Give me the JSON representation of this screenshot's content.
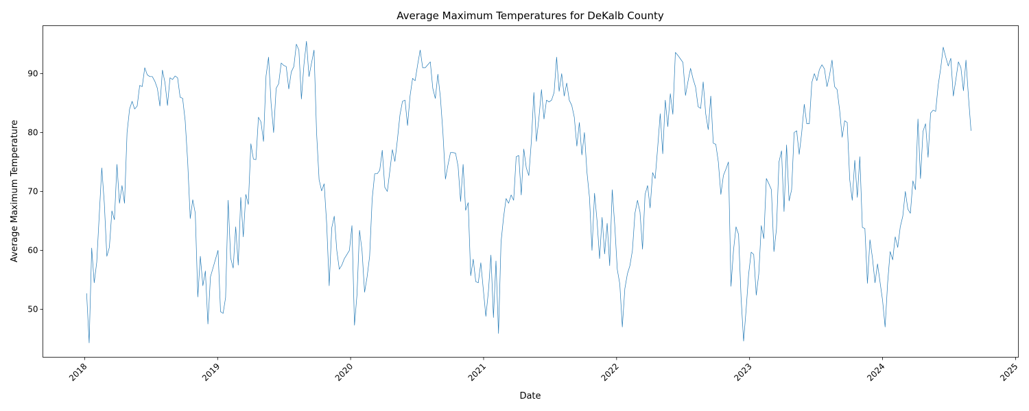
{
  "chart_data": {
    "type": "line",
    "title": "Average Maximum Temperatures for DeKalb County",
    "x_label": "Date",
    "y_label": "Average Maximum Temperature",
    "color": "#1f77b4",
    "xlim": [
      2017.686,
      2025.021
    ],
    "xticks": [
      2018,
      2019,
      2020,
      2021,
      2022,
      2023,
      2024,
      2025
    ],
    "ylim": [
      41.86,
      98.14
    ],
    "yticks": [
      50,
      60,
      70,
      80,
      90
    ],
    "grid": false,
    "x": [
      2018.015,
      2018.034,
      2018.053,
      2018.072,
      2018.091,
      2018.11,
      2018.129,
      2018.148,
      2018.167,
      2018.186,
      2018.205,
      2018.224,
      2018.243,
      2018.262,
      2018.281,
      2018.3,
      2018.319,
      2018.338,
      2018.357,
      2018.376,
      2018.395,
      2018.414,
      2018.433,
      2018.452,
      2018.471,
      2018.49,
      2018.509,
      2018.528,
      2018.547,
      2018.566,
      2018.585,
      2018.604,
      2018.623,
      2018.642,
      2018.661,
      2018.68,
      2018.699,
      2018.718,
      2018.737,
      2018.756,
      2018.775,
      2018.794,
      2018.813,
      2018.832,
      2018.851,
      2018.87,
      2018.889,
      2018.908,
      2018.927,
      2018.946,
      2018.965,
      2018.984,
      2019.003,
      2019.022,
      2019.041,
      2019.06,
      2019.079,
      2019.098,
      2019.117,
      2019.136,
      2019.155,
      2019.174,
      2019.193,
      2019.212,
      2019.231,
      2019.25,
      2019.269,
      2019.288,
      2019.307,
      2019.326,
      2019.345,
      2019.364,
      2019.383,
      2019.402,
      2019.421,
      2019.44,
      2019.459,
      2019.478,
      2019.497,
      2019.516,
      2019.535,
      2019.554,
      2019.573,
      2019.592,
      2019.611,
      2019.63,
      2019.649,
      2019.668,
      2019.687,
      2019.706,
      2019.725,
      2019.744,
      2019.763,
      2019.782,
      2019.801,
      2019.82,
      2019.839,
      2019.858,
      2019.877,
      2019.896,
      2019.915,
      2019.934,
      2019.953,
      2019.972,
      2019.991,
      2020.01,
      2020.029,
      2020.048,
      2020.067,
      2020.086,
      2020.105,
      2020.124,
      2020.143,
      2020.162,
      2020.181,
      2020.2,
      2020.219,
      2020.238,
      2020.257,
      2020.276,
      2020.295,
      2020.314,
      2020.333,
      2020.352,
      2020.371,
      2020.39,
      2020.409,
      2020.428,
      2020.447,
      2020.466,
      2020.485,
      2020.504,
      2020.523,
      2020.542,
      2020.561,
      2020.58,
      2020.599,
      2020.618,
      2020.637,
      2020.656,
      2020.675,
      2020.694,
      2020.713,
      2020.732,
      2020.751,
      2020.77,
      2020.789,
      2020.808,
      2020.827,
      2020.846,
      2020.865,
      2020.884,
      2020.903,
      2020.922,
      2020.941,
      2020.96,
      2020.979,
      2020.998,
      2021.017,
      2021.036,
      2021.055,
      2021.074,
      2021.093,
      2021.112,
      2021.131,
      2021.15,
      2021.169,
      2021.188,
      2021.207,
      2021.226,
      2021.245,
      2021.264,
      2021.283,
      2021.302,
      2021.321,
      2021.34,
      2021.359,
      2021.378,
      2021.397,
      2021.416,
      2021.435,
      2021.454,
      2021.473,
      2021.492,
      2021.511,
      2021.53,
      2021.549,
      2021.568,
      2021.587,
      2021.606,
      2021.625,
      2021.644,
      2021.663,
      2021.682,
      2021.701,
      2021.72,
      2021.739,
      2021.758,
      2021.777,
      2021.796,
      2021.815,
      2021.834,
      2021.853,
      2021.872,
      2021.891,
      2021.91,
      2021.929,
      2021.948,
      2021.967,
      2021.986,
      2022.005,
      2022.024,
      2022.043,
      2022.062,
      2022.081,
      2022.1,
      2022.119,
      2022.138,
      2022.157,
      2022.176,
      2022.195,
      2022.214,
      2022.233,
      2022.252,
      2022.271,
      2022.29,
      2022.309,
      2022.328,
      2022.347,
      2022.366,
      2022.385,
      2022.404,
      2022.423,
      2022.442,
      2022.461,
      2022.48,
      2022.499,
      2022.518,
      2022.537,
      2022.556,
      2022.575,
      2022.594,
      2022.613,
      2022.632,
      2022.651,
      2022.67,
      2022.689,
      2022.708,
      2022.727,
      2022.746,
      2022.765,
      2022.784,
      2022.803,
      2022.822,
      2022.841,
      2022.86,
      2022.879,
      2022.898,
      2022.917,
      2022.936,
      2022.955,
      2022.974,
      2022.993,
      2023.012,
      2023.031,
      2023.05,
      2023.069,
      2023.088,
      2023.107,
      2023.126,
      2023.145,
      2023.164,
      2023.183,
      2023.202,
      2023.221,
      2023.24,
      2023.259,
      2023.278,
      2023.297,
      2023.316,
      2023.335,
      2023.354,
      2023.373,
      2023.392,
      2023.411,
      2023.43,
      2023.449,
      2023.468,
      2023.487,
      2023.506,
      2023.525,
      2023.544,
      2023.563,
      2023.582,
      2023.601,
      2023.62,
      2023.639,
      2023.658,
      2023.677,
      2023.696,
      2023.715,
      2023.734,
      2023.753,
      2023.772,
      2023.791,
      2023.81,
      2023.829,
      2023.848,
      2023.867,
      2023.886,
      2023.905,
      2023.924,
      2023.943,
      2023.962,
      2023.981,
      2024,
      2024.019,
      2024.038,
      2024.057,
      2024.076,
      2024.095,
      2024.114,
      2024.133,
      2024.152,
      2024.171,
      2024.19,
      2024.209,
      2024.228,
      2024.247,
      2024.266,
      2024.285,
      2024.304,
      2024.323,
      2024.342,
      2024.361,
      2024.38,
      2024.399,
      2024.418,
      2024.437,
      2024.456,
      2024.475,
      2024.494,
      2024.513,
      2024.532,
      2024.551,
      2024.57,
      2024.589,
      2024.608,
      2024.627,
      2024.646,
      2024.665
    ],
    "values": [
      52.7,
      44.3,
      60.4,
      54.5,
      58,
      66,
      74,
      68,
      59,
      60.5,
      66.7,
      65.2,
      74.6,
      68,
      71,
      68,
      80,
      84,
      85.3,
      84,
      84.5,
      88,
      87.8,
      91,
      89.8,
      89.5,
      89.5,
      88.7,
      87.5,
      84.5,
      90.6,
      88.5,
      84.6,
      89.3,
      89,
      89.6,
      89.3,
      86,
      85.8,
      82,
      75,
      65.4,
      68.6,
      66.3,
      52.1,
      59,
      54,
      56.5,
      47.5,
      55.5,
      57,
      58.5,
      60,
      49.6,
      49.3,
      52,
      68.5,
      58.7,
      57,
      64,
      57.5,
      69,
      62.3,
      69.5,
      67.8,
      78.1,
      75.5,
      75.4,
      82.6,
      81.8,
      78.5,
      89.6,
      92.8,
      85,
      80,
      87.5,
      88.3,
      91.8,
      91.4,
      91.2,
      87.4,
      90.3,
      91.2,
      95,
      94,
      85.7,
      91.5,
      95.5,
      89.5,
      91.8,
      94,
      80,
      72,
      70.1,
      71.3,
      64.5,
      54,
      63.8,
      65.8,
      60,
      56.8,
      57.5,
      58.6,
      59.3,
      60,
      64.2,
      47.3,
      52.5,
      63.4,
      59.9,
      52.9,
      55.5,
      59,
      68.7,
      73,
      73,
      73.6,
      77,
      70.7,
      70,
      73.5,
      77.1,
      75.1,
      78.8,
      83,
      85.3,
      85.5,
      81.2,
      86.2,
      89.2,
      88.8,
      91.5,
      94,
      91,
      91,
      91.5,
      92,
      87.5,
      85.8,
      89.9,
      86,
      80,
      72.1,
      74.5,
      76.6,
      76.6,
      76.5,
      74.3,
      68.3,
      74.6,
      66.8,
      68.1,
      55.7,
      58.5,
      54.7,
      54.5,
      57.9,
      53.3,
      48.8,
      53,
      59.2,
      48.6,
      58.2,
      45.9,
      61.4,
      65.6,
      68.8,
      68,
      69.4,
      68.5,
      75.9,
      76.1,
      69.4,
      77.2,
      74,
      72.7,
      78.5,
      86.8,
      78.5,
      82.5,
      87.3,
      82.3,
      85.5,
      85.2,
      85.5,
      86.8,
      92.8,
      87,
      90,
      86.2,
      88.4,
      85.5,
      84.6,
      82.6,
      77.7,
      81.7,
      76.2,
      80,
      73.3,
      69,
      60,
      69.7,
      65,
      58.6,
      65.6,
      59.4,
      64.6,
      57.4,
      70.3,
      64.3,
      56.8,
      54.3,
      47,
      53.5,
      56,
      57.4,
      60,
      66.3,
      68.5,
      66.5,
      60.2,
      69.5,
      71,
      67.2,
      73.2,
      72.2,
      77.5,
      83.2,
      76.4,
      85.5,
      81,
      86.6,
      83.1,
      93.6,
      93.1,
      92.5,
      91.9,
      86.3,
      88.7,
      90.9,
      89.1,
      87.7,
      84.4,
      84.1,
      88.6,
      83.2,
      80.5,
      86.2,
      78.2,
      78,
      75,
      69.5,
      72.7,
      73.8,
      75,
      53.9,
      60,
      64,
      62.7,
      52,
      44.6,
      50,
      56,
      59.7,
      59.3,
      52.4,
      56,
      64.2,
      62,
      72.2,
      71.3,
      70.3,
      59.8,
      63.6,
      75,
      76.9,
      66.6,
      77.9,
      68.4,
      70.3,
      80,
      80.3,
      76.3,
      80,
      84.8,
      81.5,
      81.5,
      88.5,
      90,
      88.8,
      90.7,
      91.5,
      90.8,
      87.8,
      89.7,
      92.3,
      87.8,
      87.3,
      83.8,
      79.2,
      82,
      81.7,
      72,
      68.5,
      75.3,
      69,
      75.9,
      63.9,
      63.7,
      54.4,
      61.8,
      58.7,
      54.5,
      57.7,
      54.6,
      51.5,
      47,
      54.5,
      59.8,
      58.4,
      62.3,
      60.5,
      64,
      65.8,
      70,
      67,
      66.3,
      71.8,
      70.3,
      82.3,
      72.2,
      80.2,
      81.5,
      75.8,
      83.3,
      83.8,
      83.6,
      88,
      90.9,
      94.5,
      92.8,
      91.3,
      92.6,
      86.2,
      89,
      92,
      91,
      87.1,
      92.3,
      86,
      80.3
    ]
  }
}
